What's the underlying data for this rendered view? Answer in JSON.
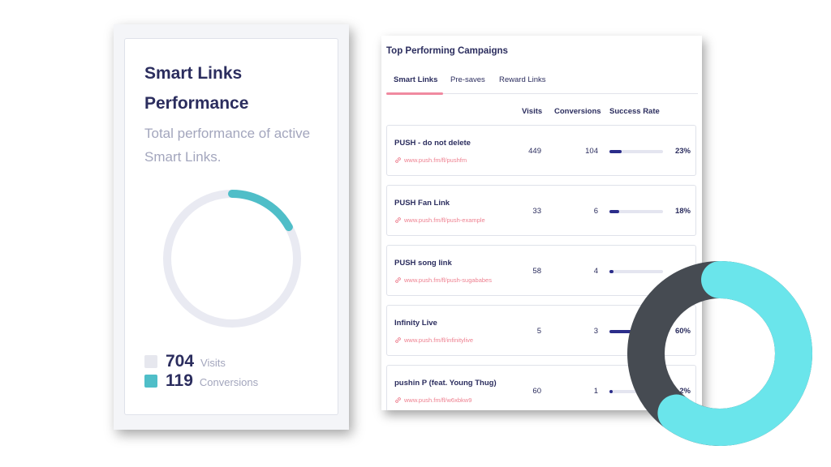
{
  "summary": {
    "title": "Smart Links Performance",
    "subtitle": "Total performance of active Smart Links.",
    "visits_value": "704",
    "visits_label": "Visits",
    "conversions_value": "119",
    "conversions_label": "Conversions",
    "conversion_fraction": 0.169,
    "colors": {
      "track": "#e9eaf2",
      "accent": "#4fbec8",
      "visits_swatch": "#e6e7ee"
    }
  },
  "campaigns": {
    "title": "Top Performing Campaigns",
    "tabs": [
      {
        "label": "Smart Links",
        "active": true
      },
      {
        "label": "Pre-saves",
        "active": false
      },
      {
        "label": "Reward Links",
        "active": false
      }
    ],
    "columns": {
      "visits": "Visits",
      "conversions": "Conversions",
      "success_rate": "Success Rate"
    },
    "rows": [
      {
        "name": "PUSH - do not delete",
        "url": "www.push.fm/fl/pushfm",
        "visits": "449",
        "conversions": "104",
        "rate": "23%",
        "rate_fraction": 0.23
      },
      {
        "name": "PUSH Fan Link",
        "url": "www.push.fm/fl/push-example",
        "visits": "33",
        "conversions": "6",
        "rate": "18%",
        "rate_fraction": 0.18
      },
      {
        "name": "PUSH song link",
        "url": "www.push.fm/fl/push-sugababes",
        "visits": "58",
        "conversions": "4",
        "rate": "",
        "rate_fraction": 0.07
      },
      {
        "name": "Infinity Live",
        "url": "www.push.fm/fl/infinitylive",
        "visits": "5",
        "conversions": "3",
        "rate": "60%",
        "rate_fraction": 0.6
      },
      {
        "name": "pushin P (feat. Young Thug)",
        "url": "www.push.fm/fl/w6xbkw9",
        "visits": "60",
        "conversions": "1",
        "rate": "2%",
        "rate_fraction": 0.02
      }
    ],
    "colors": {
      "bar": "#2b2d8a",
      "track": "#e4e5f0",
      "link": "#ee8090",
      "tab_underline": "#f08aa0"
    }
  },
  "decorative_donut": {
    "fraction": 0.6,
    "colors": {
      "accent": "#6ae5eb",
      "dark": "#464b52"
    }
  }
}
